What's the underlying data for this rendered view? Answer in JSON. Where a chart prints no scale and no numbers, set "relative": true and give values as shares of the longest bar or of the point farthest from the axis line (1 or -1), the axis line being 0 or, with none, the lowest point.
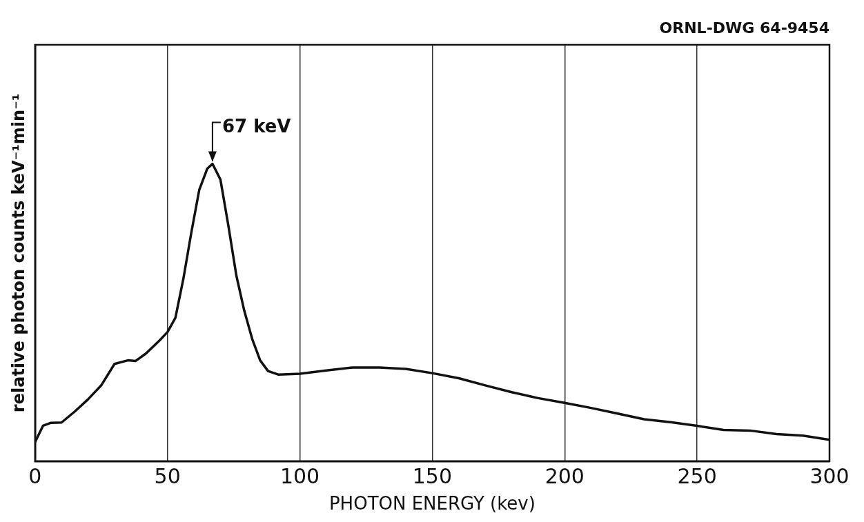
{
  "chart_data": {
    "type": "line",
    "relative": true,
    "xlabel": "PHOTON ENERGY (kev)",
    "ylabel": "relative photon counts keV⁻¹min⁻¹",
    "x": [
      0,
      3,
      6,
      10,
      15,
      20,
      25,
      30,
      35,
      38,
      42,
      47,
      50,
      53,
      56,
      59,
      62,
      65,
      67,
      70,
      73,
      76,
      79,
      82,
      85,
      88,
      92,
      100,
      110,
      120,
      130,
      140,
      150,
      160,
      170,
      180,
      190,
      200,
      210,
      220,
      230,
      240,
      250,
      260,
      270,
      280,
      290,
      300
    ],
    "series": [
      {
        "color": "#111111",
        "values": [
          0.064,
          0.119,
          0.129,
          0.13,
          0.167,
          0.208,
          0.255,
          0.327,
          0.339,
          0.337,
          0.363,
          0.406,
          0.434,
          0.482,
          0.613,
          0.768,
          0.912,
          0.983,
          1,
          0.947,
          0.792,
          0.625,
          0.506,
          0.411,
          0.339,
          0.303,
          0.291,
          0.294,
          0.305,
          0.315,
          0.315,
          0.31,
          0.296,
          0.279,
          0.255,
          0.232,
          0.212,
          0.196,
          0.179,
          0.16,
          0.141,
          0.131,
          0.119,
          0.105,
          0.103,
          0.091,
          0.086,
          0.072
        ]
      }
    ],
    "xlim": [
      0,
      300
    ],
    "xticks": [
      0,
      50,
      100,
      150,
      200,
      250,
      300
    ],
    "grid": "x",
    "marker": "none",
    "line_style": "solid",
    "legend": false,
    "annotations": [
      "ORNL-DWG 64-9454",
      {
        "text": "67 keV",
        "x": 67,
        "y": 1
      }
    ]
  }
}
